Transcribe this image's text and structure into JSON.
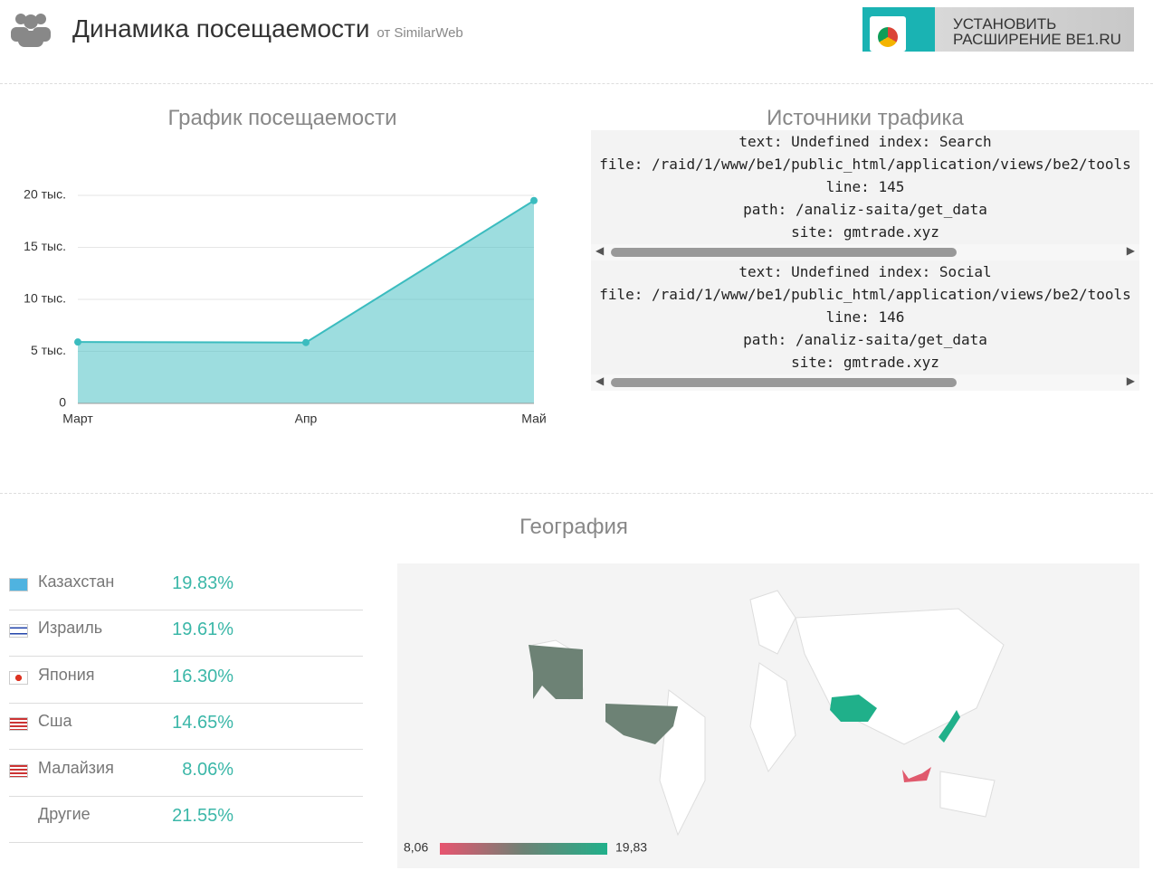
{
  "header": {
    "title": "Динамика посещаемости",
    "source": "от SimilarWeb",
    "button": [
      "УСТАНОВИТЬ",
      "РАСШИРЕНИЕ BE1.RU"
    ]
  },
  "chart_data": {
    "type": "area",
    "title": "График посещаемости",
    "categories": [
      "Март",
      "Апр",
      "Май"
    ],
    "values": [
      5900,
      5850,
      19500
    ],
    "color": "#3bbcbf",
    "ylim": [
      0,
      20000
    ],
    "yticks": [
      0,
      {
        "value": 5000,
        "label": "5 тыс."
      },
      {
        "value": 10000,
        "label": "10 тыс."
      },
      {
        "value": 15000,
        "label": "15 тыс."
      },
      {
        "value": 20000,
        "label": "20 тыс."
      }
    ],
    "grid": true
  },
  "traffic": {
    "title": "Источники трафика",
    "blocks": [
      [
        "text: Undefined index: Search",
        "file: /raid/1/www/be1/public_html/application/views/be2/tools",
        "line: 145",
        "path: /analiz-saita/get_data",
        "site: gmtrade.xyz"
      ],
      [
        "text: Undefined index: Social",
        "file: /raid/1/www/be1/public_html/application/views/be2/tools",
        "line: 146",
        "path: /analiz-saita/get_data",
        "site: gmtrade.xyz"
      ]
    ]
  },
  "geography": {
    "title": "География",
    "items": [
      {
        "name": "Казахстан",
        "share": "19.83%"
      },
      {
        "name": "Израиль",
        "share": "19.61%"
      },
      {
        "name": "Япония",
        "share": "16.30%"
      },
      {
        "name": "Сша",
        "share": "14.65%"
      },
      {
        "name": "Малайзия",
        "share": "8.06%"
      },
      {
        "name": "Другие",
        "share": "21.55%"
      }
    ],
    "legend_min": "8,06",
    "legend_max": "19,83"
  }
}
